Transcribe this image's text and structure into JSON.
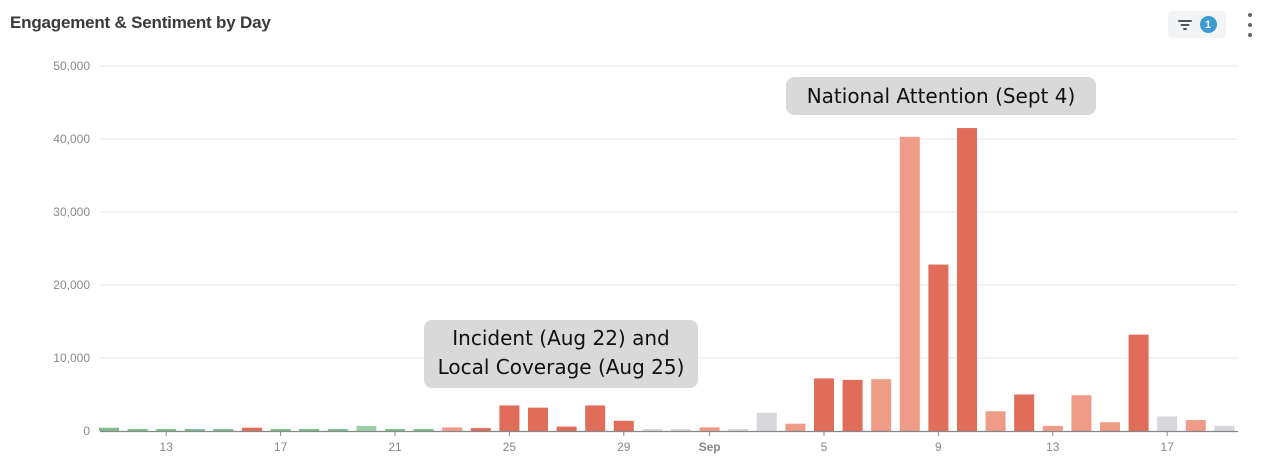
{
  "header": {
    "title": "Engagement & Sentiment by Day",
    "filter_count": "1",
    "filter_icon": "filter-icon",
    "menu_icon": "more-vertical-icon"
  },
  "annotations": [
    {
      "lines": [
        "National Attention (Sept 4)"
      ]
    },
    {
      "lines": [
        "Incident (Aug 22) and",
        "Local Coverage (Aug 25)"
      ]
    }
  ],
  "colors": {
    "negative": "#e06c5a",
    "slightly_negative": "#ee9b88",
    "neutral": "#d5d7da",
    "positive": "#9ccfa8",
    "slightly_positive": "#7fbf8f",
    "gridline": "#e8e8ea",
    "axis": "#888888",
    "tick_label": "#888888",
    "annotation_bg": "#d9d9d9"
  },
  "chart_data": {
    "type": "bar",
    "title": "Engagement & Sentiment by Day",
    "xlabel": "",
    "ylabel": "",
    "ylim": [
      0,
      50000
    ],
    "yticks": [
      "0",
      "10,000",
      "20,000",
      "30,000",
      "40,000",
      "50,000"
    ],
    "ytick_values": [
      0,
      10000,
      20000,
      30000,
      40000,
      50000
    ],
    "xtick_labels": [
      {
        "label": "13",
        "index": 2
      },
      {
        "label": "17",
        "index": 6
      },
      {
        "label": "21",
        "index": 10
      },
      {
        "label": "25",
        "index": 14
      },
      {
        "label": "29",
        "index": 18
      },
      {
        "label": "Sep",
        "index": 21,
        "bold": true
      },
      {
        "label": "5",
        "index": 25
      },
      {
        "label": "9",
        "index": 29
      },
      {
        "label": "13",
        "index": 33
      },
      {
        "label": "17",
        "index": 37
      }
    ],
    "grid": true,
    "categories": [
      "Aug 11",
      "Aug 12",
      "Aug 13",
      "Aug 14",
      "Aug 15",
      "Aug 16",
      "Aug 17",
      "Aug 18",
      "Aug 19",
      "Aug 20",
      "Aug 21",
      "Aug 22",
      "Aug 23",
      "Aug 24",
      "Aug 25",
      "Aug 26",
      "Aug 27",
      "Aug 28",
      "Aug 29",
      "Aug 30",
      "Aug 31",
      "Sep 1",
      "Sep 2",
      "Sep 3",
      "Sep 4",
      "Sep 5",
      "Sep 6",
      "Sep 7",
      "Sep 8",
      "Sep 9",
      "Sep 10",
      "Sep 11",
      "Sep 12",
      "Sep 13",
      "Sep 14",
      "Sep 15",
      "Sep 16",
      "Sep 17",
      "Sep 18",
      "Sep 19"
    ],
    "values": [
      450,
      150,
      80,
      200,
      200,
      450,
      80,
      150,
      120,
      700,
      150,
      120,
      500,
      400,
      3500,
      3200,
      600,
      3500,
      1400,
      250,
      80,
      500,
      250,
      2500,
      1000,
      7200,
      7000,
      7100,
      40300,
      22800,
      41500,
      2700,
      5000,
      700,
      4900,
      1200,
      13200,
      2000,
      1500,
      700
    ],
    "sentiment": [
      "pos2",
      "pos2",
      "pos2",
      "pos2",
      "pos2",
      "neg",
      "pos2",
      "pos2",
      "pos2",
      "pos",
      "pos2",
      "pos2",
      "neg2",
      "neg",
      "neg",
      "neg",
      "neg",
      "neg",
      "neg",
      "neu",
      "neu",
      "neg2",
      "neu",
      "neu",
      "neg2",
      "neg",
      "neg",
      "neg2",
      "neg2",
      "neg",
      "neg",
      "neg2",
      "neg",
      "neg2",
      "neg2",
      "neg2",
      "neg",
      "neu",
      "neg2",
      "neu"
    ]
  }
}
